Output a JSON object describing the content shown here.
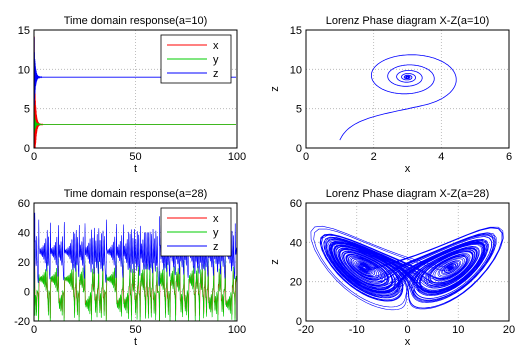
{
  "chart_data": [
    {
      "type": "line",
      "title": "Time domain response(a=10)",
      "xlabel": "t",
      "ylabel": "",
      "xlim": [
        0,
        100
      ],
      "ylim": [
        0,
        15
      ],
      "xticks": [
        0,
        50,
        100
      ],
      "yticks": [
        0,
        5,
        10,
        15
      ],
      "grid": true,
      "legend_position": "top-right",
      "series": [
        {
          "name": "x",
          "color": "#ff0000",
          "settle": 3,
          "peak": 14,
          "decay": 0.35
        },
        {
          "name": "y",
          "color": "#00cc00",
          "settle": 3,
          "peak": 4.5,
          "decay": 0.35
        },
        {
          "name": "z",
          "color": "#0000ff",
          "settle": 9,
          "peak": 14,
          "decay": 0.35
        }
      ]
    },
    {
      "type": "line",
      "title": "Lorenz Phase diagram X-Z(a=10)",
      "xlabel": "x",
      "ylabel": "z",
      "xlim": [
        0,
        6
      ],
      "ylim": [
        0,
        15
      ],
      "xticks": [
        0,
        2,
        4,
        6
      ],
      "yticks": [
        0,
        5,
        10,
        15
      ],
      "grid": true,
      "series": [
        {
          "name": "",
          "color": "#0000ff",
          "start": [
            1,
            1
          ],
          "center": [
            3,
            9
          ],
          "turns": 7
        }
      ]
    },
    {
      "type": "line",
      "title": "Time domain response(a=28)",
      "xlabel": "t",
      "ylabel": "",
      "xlim": [
        0,
        100
      ],
      "ylim": [
        -20,
        60
      ],
      "xticks": [
        0,
        50,
        100
      ],
      "yticks": [
        -20,
        0,
        20,
        40,
        60
      ],
      "grid": true,
      "legend_position": "top-right",
      "series": [
        {
          "name": "x",
          "color": "#ff0000",
          "range": [
            -12,
            12
          ]
        },
        {
          "name": "y",
          "color": "#00cc00",
          "range": [
            -14,
            8
          ]
        },
        {
          "name": "z",
          "color": "#0000ff",
          "range": [
            10,
            42
          ]
        }
      ]
    },
    {
      "type": "line",
      "title": "Lorenz Phase diagram X-Z(a=28)",
      "xlabel": "x",
      "ylabel": "z",
      "xlim": [
        -20,
        20
      ],
      "ylim": [
        0,
        60
      ],
      "xticks": [
        -20,
        -10,
        0,
        10,
        20
      ],
      "yticks": [
        0,
        20,
        40,
        60
      ],
      "grid": true,
      "series": [
        {
          "name": "",
          "color": "#0000ff",
          "left_center": [
            -7,
            27
          ],
          "right_center": [
            7,
            27
          ],
          "x_extent": [
            -14,
            11
          ],
          "z_extent": [
            2,
            45
          ]
        }
      ]
    }
  ]
}
